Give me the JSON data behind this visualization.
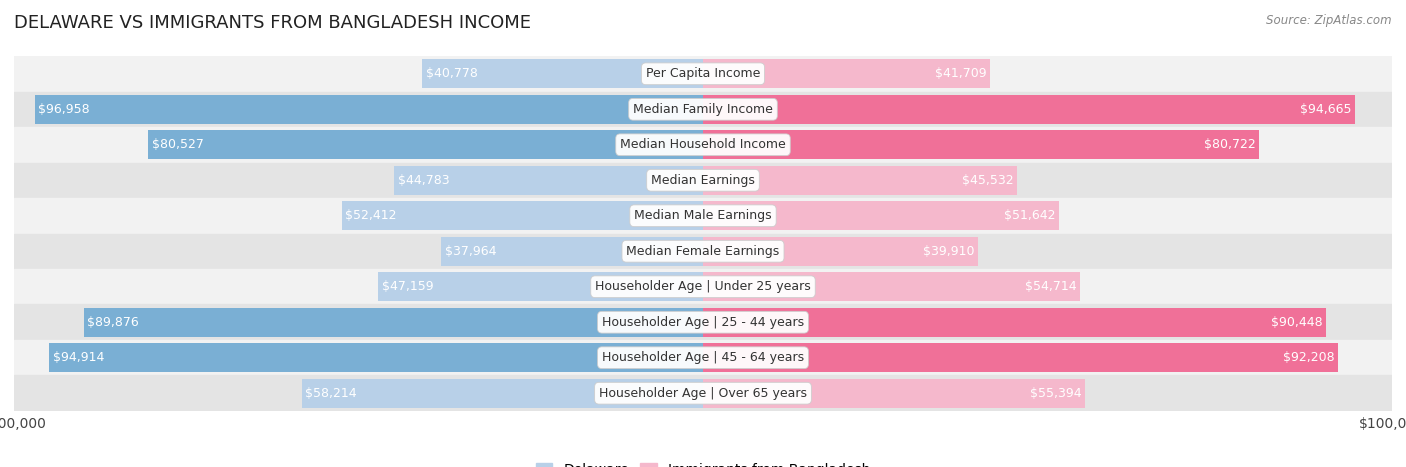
{
  "title": "DELAWARE VS IMMIGRANTS FROM BANGLADESH INCOME",
  "source": "Source: ZipAtlas.com",
  "categories": [
    "Per Capita Income",
    "Median Family Income",
    "Median Household Income",
    "Median Earnings",
    "Median Male Earnings",
    "Median Female Earnings",
    "Householder Age | Under 25 years",
    "Householder Age | 25 - 44 years",
    "Householder Age | 45 - 64 years",
    "Householder Age | Over 65 years"
  ],
  "delaware_values": [
    40778,
    96958,
    80527,
    44783,
    52412,
    37964,
    47159,
    89876,
    94914,
    58214
  ],
  "bangladesh_values": [
    41709,
    94665,
    80722,
    45532,
    51642,
    39910,
    54714,
    90448,
    92208,
    55394
  ],
  "delaware_labels": [
    "$40,778",
    "$96,958",
    "$80,527",
    "$44,783",
    "$52,412",
    "$37,964",
    "$47,159",
    "$89,876",
    "$94,914",
    "$58,214"
  ],
  "bangladesh_labels": [
    "$41,709",
    "$94,665",
    "$80,722",
    "$45,532",
    "$51,642",
    "$39,910",
    "$54,714",
    "$90,448",
    "$92,208",
    "$55,394"
  ],
  "delaware_color_light": "#b8d0e8",
  "delaware_color_dark": "#7aafd4",
  "bangladesh_color_light": "#f5b8cc",
  "bangladesh_color_dark": "#f07098",
  "max_value": 100000,
  "background_color": "#ffffff",
  "row_bg_light": "#f2f2f2",
  "row_bg_dark": "#e4e4e4",
  "label_fontsize": 9,
  "category_fontsize": 9,
  "title_fontsize": 13,
  "legend_label_delaware": "Delaware",
  "legend_label_bangladesh": "Immigrants from Bangladesh",
  "inside_label_threshold": 0.3
}
